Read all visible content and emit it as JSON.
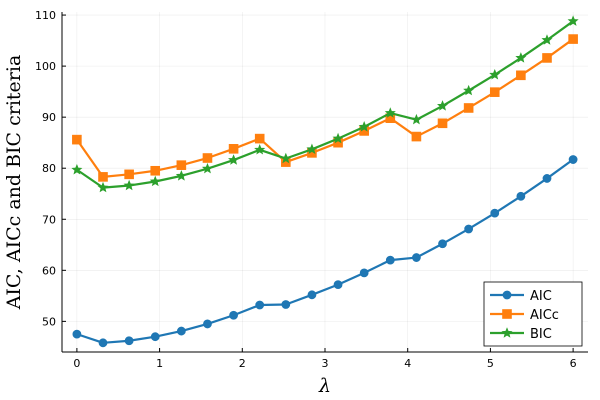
{
  "chart_data": {
    "type": "line",
    "title": "",
    "xlabel": "λ",
    "ylabel": "AIC, AICc and BIC criteria",
    "xlim": [
      -0.18,
      6.18
    ],
    "ylim": [
      44,
      110.6
    ],
    "xticks": [
      0,
      1,
      2,
      3,
      4,
      5,
      6
    ],
    "yticks": [
      50,
      60,
      70,
      80,
      90,
      100,
      110
    ],
    "xtick_labels": [
      "0",
      "1",
      "2",
      "3",
      "4",
      "5",
      "6"
    ],
    "ytick_labels": [
      "50",
      "60",
      "70",
      "80",
      "90",
      "100",
      "110"
    ],
    "grid": true,
    "legend_position": "bottom-right",
    "x": [
      0,
      0.3158,
      0.6316,
      0.9474,
      1.2632,
      1.5789,
      1.8947,
      2.2105,
      2.5263,
      2.8421,
      3.1579,
      3.4737,
      3.7895,
      4.1053,
      4.4211,
      4.7368,
      5.0526,
      5.3684,
      5.6842,
      6.0
    ],
    "series": [
      {
        "name": "AIC",
        "color": "#1f77b4",
        "marker": "circle",
        "values": [
          47.5,
          45.8,
          46.2,
          47.0,
          48.1,
          49.5,
          51.2,
          53.2,
          53.3,
          55.2,
          57.2,
          59.5,
          62.0,
          62.5,
          65.2,
          68.1,
          71.2,
          74.5,
          78.0,
          81.7
        ]
      },
      {
        "name": "AICc",
        "color": "#ff7f0e",
        "marker": "square",
        "values": [
          85.6,
          78.3,
          78.8,
          79.5,
          80.6,
          82.0,
          83.8,
          85.8,
          81.2,
          83.0,
          85.0,
          87.3,
          89.8,
          86.2,
          88.8,
          91.8,
          94.9,
          98.2,
          101.6,
          105.3
        ]
      },
      {
        "name": "BIC",
        "color": "#2ca02c",
        "marker": "star",
        "values": [
          79.7,
          76.2,
          76.6,
          77.4,
          78.5,
          79.9,
          81.6,
          83.6,
          81.9,
          83.7,
          85.8,
          88.1,
          90.8,
          89.5,
          92.2,
          95.2,
          98.3,
          101.6,
          105.1,
          108.8
        ]
      }
    ]
  }
}
